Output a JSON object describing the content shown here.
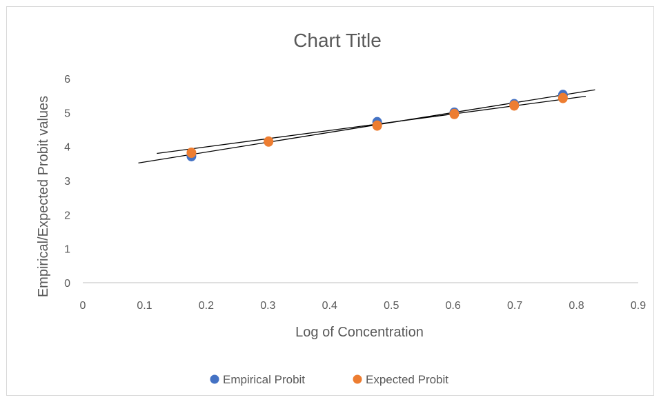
{
  "chart_data": {
    "type": "scatter",
    "title": "Chart Title",
    "xlabel": "Log of Concentration",
    "ylabel": "Empirical/Expected Probit values",
    "xlim": [
      0,
      0.9
    ],
    "ylim": [
      0,
      6
    ],
    "x_ticks": [
      "0",
      "0.1",
      "0.2",
      "0.3",
      "0.4",
      "0.5",
      "0.6",
      "0.7",
      "0.8",
      "0.9"
    ],
    "y_ticks": [
      "0",
      "1",
      "2",
      "3",
      "4",
      "5",
      "6"
    ],
    "grid": false,
    "legend_position": "bottom",
    "series": [
      {
        "name": "Empirical Probit",
        "color": "#4472c4",
        "x": [
          0.176,
          0.477,
          0.602,
          0.699,
          0.778
        ],
        "y": [
          3.72,
          4.72,
          5.0,
          5.25,
          5.52
        ],
        "trendline": {
          "x": [
            0.09,
            0.83
          ],
          "y": [
            3.52,
            5.67
          ]
        }
      },
      {
        "name": "Expected Probit",
        "color": "#ed7d31",
        "x": [
          0.176,
          0.301,
          0.477,
          0.602,
          0.699,
          0.778
        ],
        "y": [
          3.82,
          4.15,
          4.62,
          4.96,
          5.21,
          5.43
        ],
        "trendline": {
          "x": [
            0.12,
            0.815
          ],
          "y": [
            3.8,
            5.48
          ]
        }
      }
    ]
  }
}
